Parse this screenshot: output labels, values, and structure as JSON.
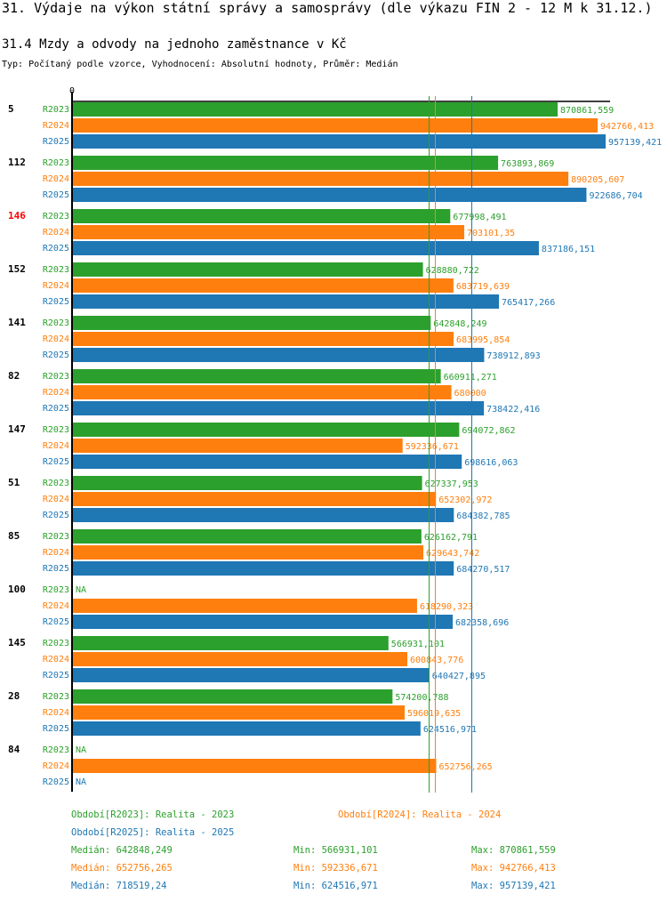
{
  "header": {
    "title": "31. Výdaje na výkon státní správy a samosprávy (dle výkazu FIN 2 - 12 M k 31.12.)",
    "subtitle": "31.4 Mzdy a odvody na jednoho zaměstnance v Kč",
    "meta": "Typ: Počítaný podle vzorce, Vyhodnocení: Absolutní hodnoty, Průměr: Medián"
  },
  "colors": {
    "R2023": "#2ca02c",
    "R2024": "#ff7f0e",
    "R2025": "#1f77b4",
    "highlight": "#ff0000",
    "axis": "#000000"
  },
  "chart_data": {
    "type": "bar",
    "orientation": "horizontal",
    "title": "31.4 Mzdy a odvody na jednoho zaměstnance v Kč",
    "x_tick_labels": [
      "0"
    ],
    "xlim": [
      0,
      970000
    ],
    "series_names": [
      "R2023",
      "R2024",
      "R2025"
    ],
    "groups": [
      {
        "label": "5",
        "highlight": false,
        "values": [
          870861.559,
          942766.413,
          957139.421
        ],
        "labels": [
          "870861,559",
          "942766,413",
          "957139,421"
        ]
      },
      {
        "label": "112",
        "highlight": false,
        "values": [
          763893.869,
          890205.607,
          922686.704
        ],
        "labels": [
          "763893,869",
          "890205,607",
          "922686,704"
        ]
      },
      {
        "label": "146",
        "highlight": true,
        "values": [
          677998.491,
          703101.35,
          837186.151
        ],
        "labels": [
          "677998,491",
          "703101,35",
          "837186,151"
        ]
      },
      {
        "label": "152",
        "highlight": false,
        "values": [
          628880.722,
          683719.639,
          765417.266
        ],
        "labels": [
          "628880,722",
          "683719,639",
          "765417,266"
        ]
      },
      {
        "label": "141",
        "highlight": false,
        "values": [
          642848.249,
          683995.854,
          738912.893
        ],
        "labels": [
          "642848,249",
          "683995,854",
          "738912,893"
        ]
      },
      {
        "label": "82",
        "highlight": false,
        "values": [
          660911.271,
          680000,
          738422.416
        ],
        "labels": [
          "660911,271",
          "680000",
          "738422,416"
        ]
      },
      {
        "label": "147",
        "highlight": false,
        "values": [
          694072.862,
          592336.671,
          698616.063
        ],
        "labels": [
          "694072,862",
          "592336,671",
          "698616,063"
        ]
      },
      {
        "label": "51",
        "highlight": false,
        "values": [
          627337.953,
          652302.972,
          684382.785
        ],
        "labels": [
          "627337,953",
          "652302,972",
          "684382,785"
        ]
      },
      {
        "label": "85",
        "highlight": false,
        "values": [
          626162.791,
          629643.742,
          684270.517
        ],
        "labels": [
          "626162,791",
          "629643,742",
          "684270,517"
        ]
      },
      {
        "label": "100",
        "highlight": false,
        "values": [
          null,
          618290.323,
          682358.696
        ],
        "labels": [
          "NA",
          "618290,323",
          "682358,696"
        ]
      },
      {
        "label": "145",
        "highlight": false,
        "values": [
          566931.101,
          600843.776,
          640427.895
        ],
        "labels": [
          "566931,101",
          "600843,776",
          "640427,895"
        ]
      },
      {
        "label": "28",
        "highlight": false,
        "values": [
          574200.788,
          596019.635,
          624516.971
        ],
        "labels": [
          "574200,788",
          "596019,635",
          "624516,971"
        ]
      },
      {
        "label": "84",
        "highlight": false,
        "values": [
          null,
          652756.265,
          null
        ],
        "labels": [
          "NA",
          "652756,265",
          "NA"
        ]
      }
    ],
    "medians": [
      642848.249,
      652756.265,
      718519.24
    ],
    "legend": [
      "Období[R2023]: Realita - 2023",
      "Období[R2024]: Realita - 2024",
      "Období[R2025]: Realita - 2025"
    ],
    "stats": [
      {
        "median": "Medián: 642848,249",
        "min": "Min: 566931,101",
        "max": "Max: 870861,559"
      },
      {
        "median": "Medián: 652756,265",
        "min": "Min: 592336,671",
        "max": "Max: 942766,413"
      },
      {
        "median": "Medián: 718519,24",
        "min": "Min: 624516,971",
        "max": "Max: 957139,421"
      }
    ]
  }
}
